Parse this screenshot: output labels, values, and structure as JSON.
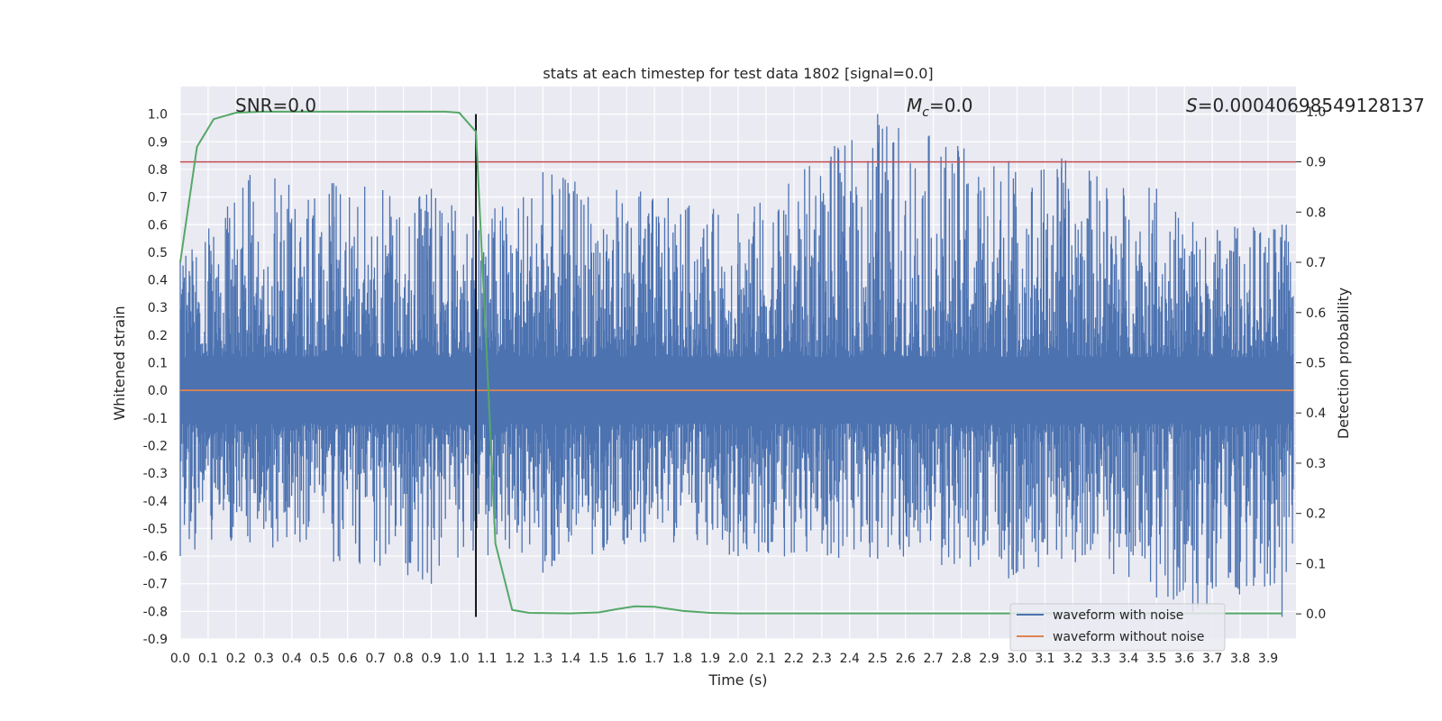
{
  "chart_data": {
    "type": "line",
    "title": "stats at each timestep for test data 1802 [signal=0.0]",
    "xlabel": "Time (s)",
    "ylabel": "Whitened strain",
    "y2label": "Detection probability",
    "xlim": [
      0.0,
      4.0
    ],
    "ylim": [
      -0.9,
      1.1
    ],
    "y2lim": [
      -0.05,
      1.05
    ],
    "xticks": [
      "0.0",
      "0.1",
      "0.2",
      "0.3",
      "0.4",
      "0.5",
      "0.6",
      "0.7",
      "0.8",
      "0.9",
      "1.0",
      "1.1",
      "1.2",
      "1.3",
      "1.4",
      "1.5",
      "1.6",
      "1.7",
      "1.8",
      "1.9",
      "2.0",
      "2.1",
      "2.2",
      "2.3",
      "2.4",
      "2.5",
      "2.6",
      "2.7",
      "2.8",
      "2.9",
      "3.0",
      "3.1",
      "3.2",
      "3.3",
      "3.4",
      "3.5",
      "3.6",
      "3.7",
      "3.8",
      "3.9"
    ],
    "yticks": [
      "-0.9",
      "-0.8",
      "-0.7",
      "-0.6",
      "-0.5",
      "-0.4",
      "-0.3",
      "-0.2",
      "-0.1",
      "0.0",
      "0.1",
      "0.2",
      "0.3",
      "0.4",
      "0.5",
      "0.6",
      "0.7",
      "0.8",
      "0.9",
      "1.0"
    ],
    "y2ticks": [
      "0.0",
      "0.1",
      "0.2",
      "0.3",
      "0.4",
      "0.5",
      "0.6",
      "0.7",
      "0.8",
      "0.9",
      "1.0"
    ],
    "annotations": {
      "snr": "SNR=0.0",
      "mc": "=0.0",
      "s": "=0.00040698549128137"
    },
    "legend": {
      "position": "lower right",
      "entries": [
        "waveform with noise",
        "waveform without noise"
      ]
    },
    "colors": {
      "noise": "#4c72b0",
      "clean": "#dd8452",
      "probability": "#55a868",
      "threshold": "#c44e52",
      "marker": "#000000",
      "background": "#eaeaf2",
      "grid": "#ffffff"
    },
    "grid": true,
    "series": [
      {
        "name": "waveform with noise",
        "axis": "left",
        "kind": "noise",
        "envelope": {
          "time": [
            0.0,
            0.25,
            0.55,
            0.9,
            1.05,
            1.3,
            1.65,
            2.0,
            2.5,
            2.97,
            3.16,
            3.5,
            3.63,
            3.95
          ],
          "max": [
            0.47,
            0.78,
            0.75,
            0.73,
            0.63,
            0.79,
            0.72,
            0.64,
            1.0,
            0.83,
            0.84,
            0.73,
            0.61,
            0.6
          ],
          "min": [
            -0.6,
            -0.55,
            -0.62,
            -0.7,
            -0.58,
            -0.66,
            -0.55,
            -0.6,
            -0.61,
            -0.68,
            -0.61,
            -0.75,
            -0.8,
            -0.82
          ]
        }
      },
      {
        "name": "waveform without noise",
        "axis": "left",
        "x": [
          0.0,
          3.99
        ],
        "y": [
          0.0,
          0.0
        ]
      },
      {
        "name": "",
        "axis": "right",
        "x": [
          0.0,
          0.06,
          0.12,
          0.2,
          0.3,
          0.5,
          0.8,
          0.95,
          1.0,
          1.06,
          1.1,
          1.13,
          1.19,
          1.25,
          1.4,
          1.5,
          1.57,
          1.63,
          1.7,
          1.8,
          1.9,
          2.0,
          2.5,
          3.0,
          3.5,
          3.95
        ],
        "y": [
          0.7,
          0.93,
          0.985,
          0.998,
          1.0,
          1.0,
          1.0,
          1.0,
          0.998,
          0.96,
          0.5,
          0.14,
          0.008,
          0.002,
          0.001,
          0.003,
          0.01,
          0.015,
          0.014,
          0.006,
          0.002,
          0.001,
          0.001,
          0.001,
          0.001,
          0.001
        ]
      }
    ],
    "threshold": 0.9,
    "marker_time": 1.06
  }
}
